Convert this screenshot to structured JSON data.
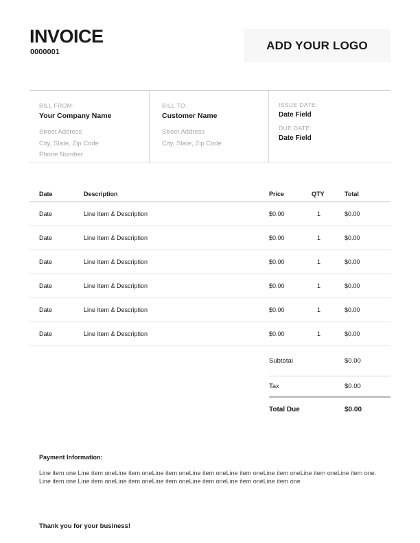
{
  "colors": {
    "ink": "#1a1a1a",
    "muted": "#a6a6a6",
    "logo_bg": "#f7f7f7",
    "line_strong": "#b3b3b3",
    "line_mid": "#d6d6d6",
    "line_light": "#e0e0e0",
    "line_faint": "#e6e6e6",
    "body_text": "#3f3f3f"
  },
  "invoice": {
    "title": "INVOICE",
    "number": "0000001",
    "logo_label": "ADD YOUR LOGO"
  },
  "parties": {
    "bill_from": {
      "label": "BILL FROM:",
      "name": "Your Company Name",
      "address": "Street Address\nCity, State, Zip Code\nPhone Number"
    },
    "bill_to": {
      "label": "BILL TO:",
      "name": "Customer Name",
      "address": "Street Address\nCity, State, Zip Code"
    },
    "dates": {
      "issue_label": "ISSUE DATE:",
      "issue_value": "Date Field",
      "due_label": "DUE DATE:",
      "due_value": "Date Field"
    }
  },
  "table": {
    "headers": {
      "date": "Date",
      "description": "Description",
      "price": "Price",
      "qty": "QTY",
      "total": "Total"
    },
    "rows": [
      {
        "date": "Date",
        "description": "Line Item & Description",
        "price": "$0.00",
        "qty": "1",
        "total": "$0.00"
      },
      {
        "date": "Date",
        "description": "Line Item & Description",
        "price": "$0.00",
        "qty": "1",
        "total": "$0.00"
      },
      {
        "date": "Date",
        "description": "Line Item & Description",
        "price": "$0.00",
        "qty": "1",
        "total": "$0.00"
      },
      {
        "date": "Date",
        "description": "Line Item & Description",
        "price": "$0.00",
        "qty": "1",
        "total": "$0.00"
      },
      {
        "date": "Date",
        "description": "Line Item & Description",
        "price": "$0.00",
        "qty": "1",
        "total": "$0.00"
      },
      {
        "date": "Date",
        "description": "Line Item & Description",
        "price": "$0.00",
        "qty": "1",
        "total": "$0.00"
      }
    ]
  },
  "totals": {
    "subtotal_label": "Subtotal",
    "subtotal_value": "$0.00",
    "tax_label": "Tax",
    "tax_value": "$0.00",
    "total_label": "Total Due",
    "total_value": "$0.00"
  },
  "payment": {
    "heading": "Payment Information:",
    "body": "Line item one Line item oneLine item oneLine item oneLine item oneLine item oneLine item oneLine item oneLine item one. Line item one Line item oneLine item oneLine item oneLine item oneLine item oneLine item one"
  },
  "footer": {
    "thanks": "Thank you for your business!"
  }
}
